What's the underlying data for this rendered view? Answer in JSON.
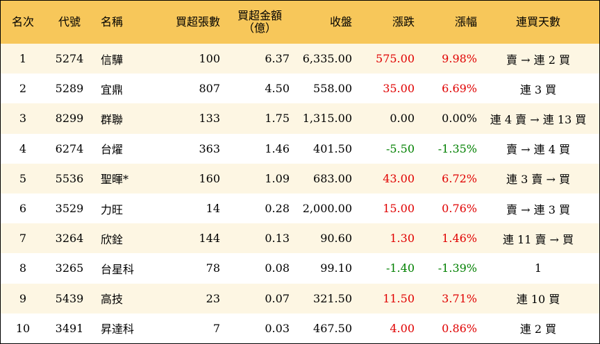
{
  "headers": [
    "名次",
    "代號",
    "名稱",
    "買超張數",
    "買超金額",
    "（億）",
    "收盤",
    "漲跌",
    "漲幅",
    "連買天數"
  ],
  "rows": [
    {
      "rank": "1",
      "code": "5274",
      "name": "信驊",
      "shares": "100",
      "amount": "6.37",
      "close": "6,335.00",
      "change": "575.00",
      "pct": "9.98%",
      "streak": "賣 → 連 2 買",
      "dir": "pos"
    },
    {
      "rank": "2",
      "code": "5289",
      "name": "宜鼎",
      "shares": "807",
      "amount": "4.50",
      "close": "558.00",
      "change": "35.00",
      "pct": "6.69%",
      "streak": "連 3 買",
      "dir": "pos"
    },
    {
      "rank": "3",
      "code": "8299",
      "name": "群聯",
      "shares": "133",
      "amount": "1.75",
      "close": "1,315.00",
      "change": "0.00",
      "pct": "0.00%",
      "streak": "連 4 賣 → 連 13 買",
      "dir": "flat"
    },
    {
      "rank": "4",
      "code": "6274",
      "name": "台燿",
      "shares": "363",
      "amount": "1.46",
      "close": "401.50",
      "change": "-5.50",
      "pct": "-1.35%",
      "streak": "賣 → 連 4 買",
      "dir": "neg"
    },
    {
      "rank": "5",
      "code": "5536",
      "name": "聖暉*",
      "shares": "160",
      "amount": "1.09",
      "close": "683.00",
      "change": "43.00",
      "pct": "6.72%",
      "streak": "連 3 賣 → 買",
      "dir": "pos"
    },
    {
      "rank": "6",
      "code": "3529",
      "name": "力旺",
      "shares": "14",
      "amount": "0.28",
      "close": "2,000.00",
      "change": "15.00",
      "pct": "0.76%",
      "streak": "賣 → 連 3 買",
      "dir": "pos"
    },
    {
      "rank": "7",
      "code": "3264",
      "name": "欣銓",
      "shares": "144",
      "amount": "0.13",
      "close": "90.60",
      "change": "1.30",
      "pct": "1.46%",
      "streak": "連 11 賣 → 買",
      "dir": "pos"
    },
    {
      "rank": "8",
      "code": "3265",
      "name": "台星科",
      "shares": "78",
      "amount": "0.08",
      "close": "99.10",
      "change": "-1.40",
      "pct": "-1.39%",
      "streak": "1",
      "dir": "neg"
    },
    {
      "rank": "9",
      "code": "5439",
      "name": "高技",
      "shares": "23",
      "amount": "0.07",
      "close": "321.50",
      "change": "11.50",
      "pct": "3.71%",
      "streak": "連 10 買",
      "dir": "pos"
    },
    {
      "rank": "10",
      "code": "3491",
      "name": "昇達科",
      "shares": "7",
      "amount": "0.03",
      "close": "467.50",
      "change": "4.00",
      "pct": "0.86%",
      "streak": "連 2 買",
      "dir": "pos"
    }
  ],
  "colors": {
    "header_bg": "#f7c75a",
    "odd_row_bg": "#fdf6e3",
    "up": "#e00000",
    "down": "#008000"
  }
}
